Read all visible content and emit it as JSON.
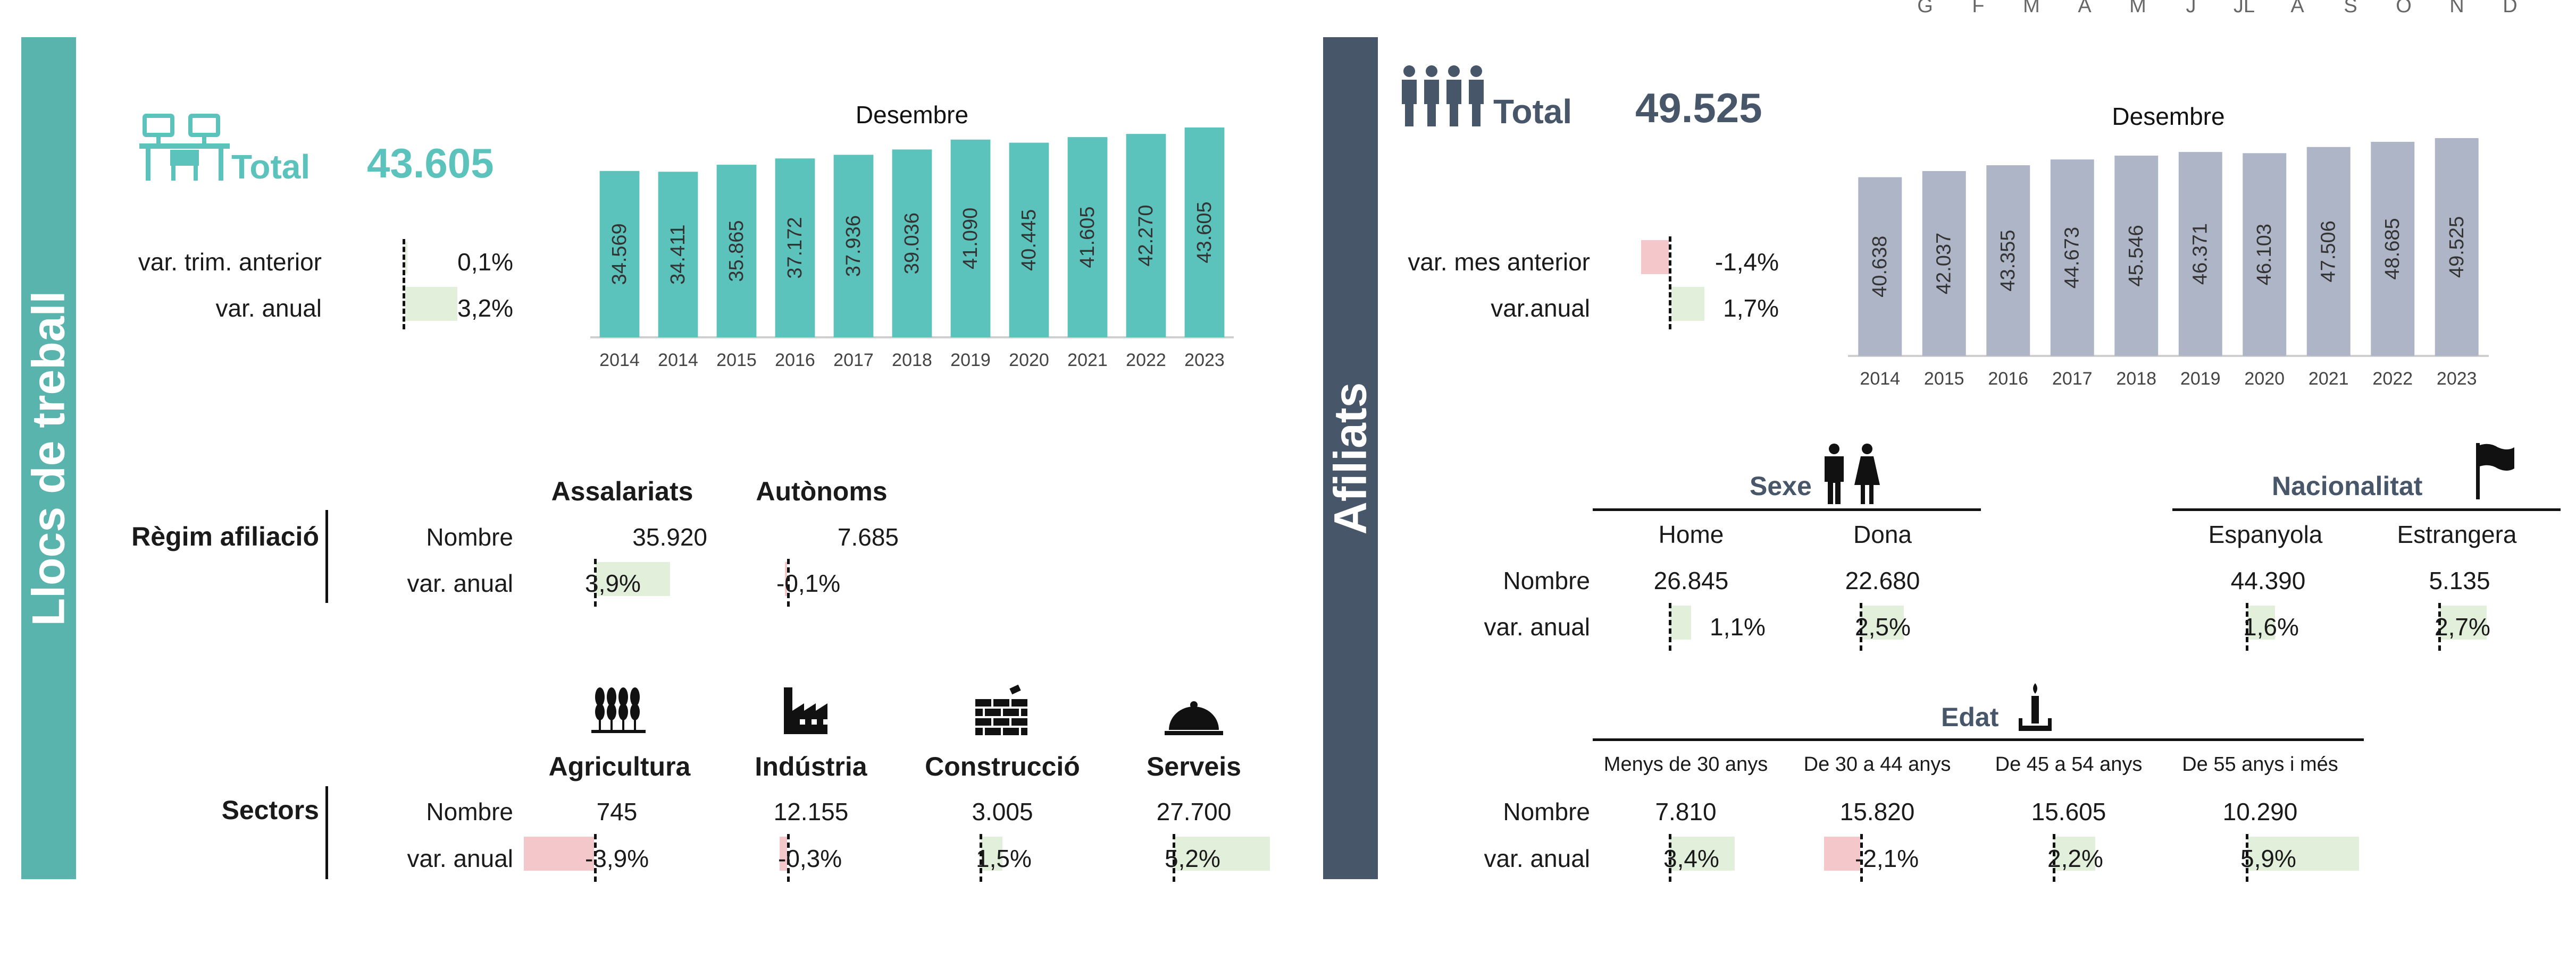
{
  "months": [
    "G",
    "F",
    "M",
    "A",
    "M",
    "J",
    "JL",
    "A",
    "S",
    "O",
    "N",
    "D"
  ],
  "left": {
    "title": "Llocs de treball",
    "total_label": "Total",
    "total_value": "43.605",
    "var_trim_label": "var. trim. anterior",
    "var_trim_value": "0,1%",
    "var_anual_label": "var. anual",
    "var_anual_value": "3,2%",
    "regim": {
      "title": "Règim afiliació",
      "col1": "Assalariats",
      "col2": "Autònoms",
      "row_nombre": "Nombre",
      "row_var": "var. anual",
      "val1": "35.920",
      "val2": "7.685",
      "var1": "3,9%",
      "var2": "-0,1%"
    },
    "sectors": {
      "title": "Sectors",
      "row_nombre": "Nombre",
      "row_var": "var. anual",
      "items": [
        {
          "name": "Agricultura",
          "value": "745",
          "var": "-3,9%"
        },
        {
          "name": "Indústria",
          "value": "12.155",
          "var": "-0,3%"
        },
        {
          "name": "Construcció",
          "value": "3.005",
          "var": "1,5%"
        },
        {
          "name": "Serveis",
          "value": "27.700",
          "var": "5,2%"
        }
      ]
    }
  },
  "right": {
    "title": "Afiliats",
    "total_label": "Total",
    "total_value": "49.525",
    "var_mes_label": "var. mes anterior",
    "var_mes_value": "-1,4%",
    "var_anual_label": "var.anual",
    "var_anual_value": "1,7%",
    "sexe": {
      "title": "Sexe",
      "col1": "Home",
      "col2": "Dona",
      "row_nombre": "Nombre",
      "row_var": "var. anual",
      "val1": "26.845",
      "val2": "22.680",
      "var1": "1,1%",
      "var2": "2,5%"
    },
    "nacionalitat": {
      "title": "Nacionalitat",
      "col1": "Espanyola",
      "col2": "Estrangera",
      "val1": "44.390",
      "val2": "5.135",
      "var1": "1,6%",
      "var2": "2,7%"
    },
    "edat": {
      "title": "Edat",
      "row_nombre": "Nombre",
      "row_var": "var. anual",
      "items": [
        {
          "name": "Menys de 30 anys",
          "value": "7.810",
          "var": "3,4%"
        },
        {
          "name": "De 30 a 44 anys",
          "value": "15.820",
          "var": "-2,1%"
        },
        {
          "name": "De 45 a 54 anys",
          "value": "15.605",
          "var": "2,2%"
        },
        {
          "name": "De 55 anys i més",
          "value": "10.290",
          "var": "5,9%"
        }
      ]
    }
  },
  "chart_data": [
    {
      "type": "bar",
      "title": "Desembre",
      "xlabel": "",
      "ylabel": "",
      "categories": [
        "2014",
        "2014",
        "2015",
        "2016",
        "2017",
        "2018",
        "2019",
        "2020",
        "2021",
        "2022",
        "2023"
      ],
      "values": [
        34569,
        34411,
        35865,
        37172,
        37936,
        39036,
        41090,
        40445,
        41605,
        42270,
        43605
      ],
      "value_labels": [
        "34.569",
        "34.411",
        "35.865",
        "37.172",
        "37.936",
        "39.036",
        "41.090",
        "40.445",
        "41.605",
        "42.270",
        "43.605"
      ],
      "ylim": [
        0,
        43605
      ],
      "color": "#5cc2bc",
      "grid": false
    },
    {
      "type": "bar",
      "title": "Desembre",
      "xlabel": "",
      "ylabel": "",
      "categories": [
        "2014",
        "2015",
        "2016",
        "2017",
        "2018",
        "2019",
        "2020",
        "2021",
        "2022",
        "2023"
      ],
      "values": [
        40638,
        42037,
        43355,
        44673,
        45546,
        46371,
        46103,
        47506,
        48685,
        49525
      ],
      "value_labels": [
        "40.638",
        "42.037",
        "43.355",
        "44.673",
        "45.546",
        "46.371",
        "46.103",
        "47.506",
        "48.685",
        "49.525"
      ],
      "ylim": [
        0,
        49525
      ],
      "color": "#adb5c6",
      "grid": false
    }
  ],
  "colors": {
    "teal": "#5ab4ae",
    "teal_text": "#5cc2bc",
    "slate": "#48566a",
    "positive_bar": "#e2efda",
    "negative_bar": "#f4c7cb"
  },
  "icons": [
    "desk-chair-icon",
    "people-group-icon",
    "wheat-icon",
    "factory-icon",
    "brick-wall-icon",
    "cloche-icon",
    "man-icon",
    "woman-icon",
    "flag-icon",
    "candle-icon"
  ]
}
